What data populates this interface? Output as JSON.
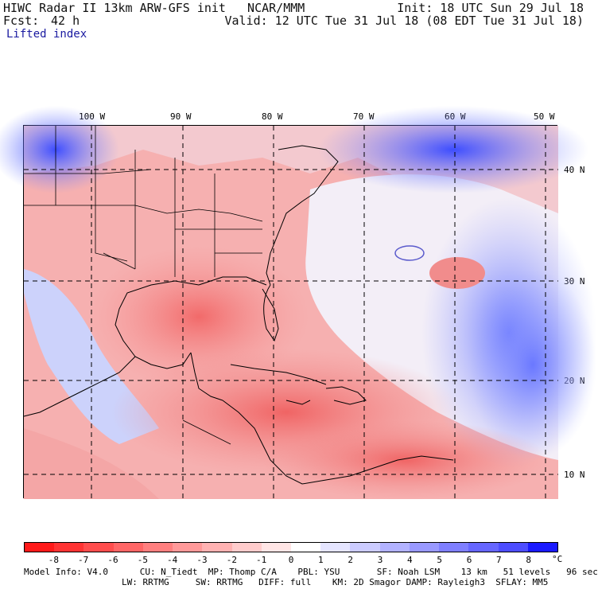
{
  "header": {
    "title": "HIWC Radar II 13km ARW-GFS init   NCAR/MMM",
    "init": "Init: 18 UTC Sun 29 Jul 18",
    "fcst_label": "Fcst:",
    "fcst_value": "42 h",
    "valid": "Valid: 12 UTC Tue 31 Jul 18 (08 EDT Tue 31 Jul 18)",
    "field": "Lifted index"
  },
  "map": {
    "lon_labels": [
      "100 W",
      "90 W",
      "80 W",
      "70 W",
      "60 W",
      "50 W"
    ],
    "lat_labels": [
      "40 N",
      "30 N",
      "20 N",
      "10 N"
    ]
  },
  "colorbar": {
    "ticks": [
      "-8",
      "-7",
      "-6",
      "-5",
      "-4",
      "-3",
      "-2",
      "-1",
      "0",
      "1",
      "2",
      "3",
      "4",
      "5",
      "6",
      "7",
      "8"
    ],
    "unit": "°C",
    "colors": [
      "#ff1a1a",
      "#ff3333",
      "#ff4d4d",
      "#ff6666",
      "#ff7f7f",
      "#ff9999",
      "#ffb2b2",
      "#ffcccc",
      "#ffe5e5",
      "#ffffff",
      "#e5e5ff",
      "#ccccff",
      "#b2b2ff",
      "#9999ff",
      "#7f7fff",
      "#6666ff",
      "#4d4dff",
      "#1a1aff"
    ]
  },
  "model_info": {
    "line1": "Model Info: V4.0      CU: N_Tiedt  MP: Thomp C/A    PBL: YSU       SF: Noah LSM    13 km   51 levels   96 sec",
    "line2": "LW: RRTMG     SW: RRTMG   DIFF: full    KM: 2D Smagor DAMP: Rayleigh3  SFLAY: MM5"
  },
  "colors": {
    "unstable": "#f07070",
    "stable": "#5a6aff",
    "neutral": "#f4f0f6"
  }
}
